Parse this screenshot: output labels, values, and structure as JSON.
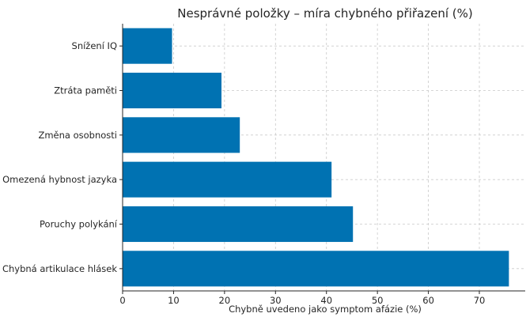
{
  "chart_data": {
    "type": "bar",
    "orientation": "horizontal",
    "title": "Nesprávné položky – míra chybného přiřazení (%)",
    "xlabel": "Chybně uvedeno jako symptom afázie (%)",
    "ylabel": "",
    "categories": [
      "Chybná artikulace hlásek",
      "Poruchy polykání",
      "Omezená hybnost jazyka",
      "Změna osobnosti",
      "Ztráta paměti",
      "Snížení IQ"
    ],
    "values": [
      75.8,
      45.2,
      41.0,
      23.0,
      19.4,
      9.7
    ],
    "xlim": [
      0,
      79
    ],
    "xticks": [
      0,
      10,
      20,
      30,
      40,
      50,
      60,
      70
    ],
    "grid": true,
    "color": "#0072b2"
  }
}
